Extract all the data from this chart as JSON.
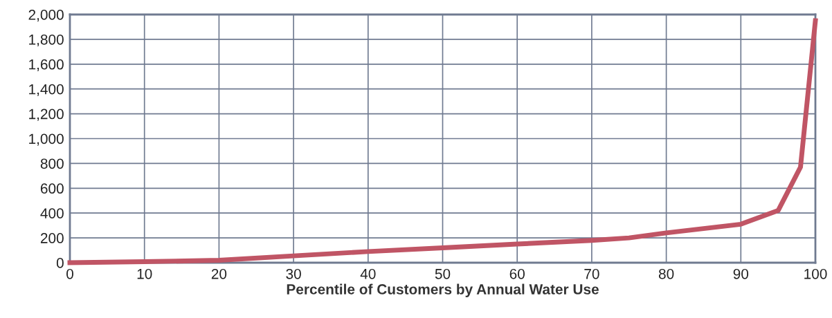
{
  "chart_data": {
    "type": "line",
    "xlabel": "Percentile of Customers by Annual Water Use",
    "series": [
      {
        "color": "#c05565",
        "x": [
          0,
          10,
          20,
          30,
          40,
          50,
          60,
          70,
          75,
          80,
          85,
          90,
          95,
          98,
          100
        ],
        "values": [
          0,
          8,
          20,
          55,
          90,
          120,
          150,
          180,
          200,
          240,
          275,
          310,
          420,
          770,
          1950
        ]
      }
    ],
    "xlim": [
      0,
      100
    ],
    "xticks": [
      0,
      10,
      20,
      30,
      40,
      50,
      60,
      70,
      80,
      90,
      100
    ],
    "ylim": [
      0,
      2000
    ],
    "yticks": [
      {
        "value": 0,
        "label": "0"
      },
      {
        "value": 200,
        "label": "200"
      },
      {
        "value": 400,
        "label": "400"
      },
      {
        "value": 600,
        "label": "600"
      },
      {
        "value": 800,
        "label": "800"
      },
      {
        "value": 1000,
        "label": "1,000"
      },
      {
        "value": 1200,
        "label": "1,200"
      },
      {
        "value": 1400,
        "label": "1,400"
      },
      {
        "value": 1600,
        "label": "1,600"
      },
      {
        "value": 1800,
        "label": "1,800"
      },
      {
        "value": 2000,
        "label": "2,000"
      }
    ],
    "grid": true,
    "legend": false,
    "marker": "none",
    "line_style": "solid"
  }
}
